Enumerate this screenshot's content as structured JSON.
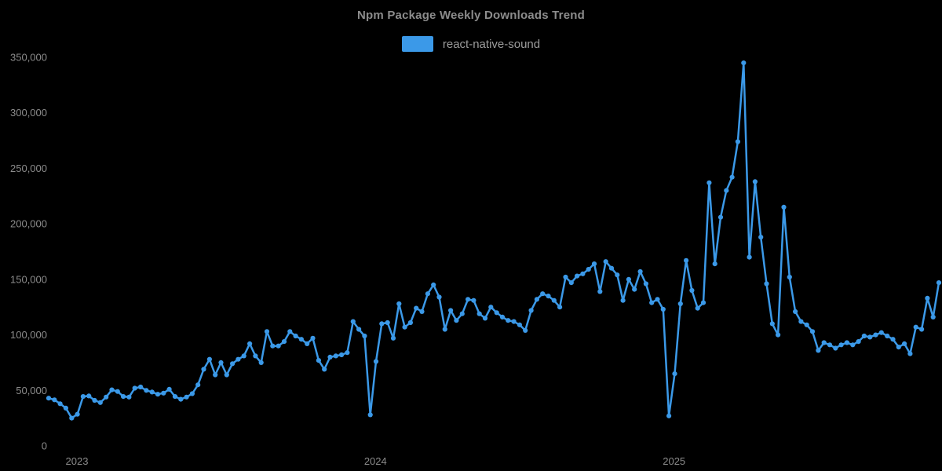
{
  "title": "Npm Package Weekly Downloads Trend",
  "legend": {
    "label": "react-native-sound",
    "swatch_color": "#3b99e8"
  },
  "colors": {
    "background": "#000000",
    "title_text": "#8c8c8c",
    "axis_label_text": "#8b8b8b",
    "legend_text": "#9c9c9c",
    "line": "#3b99e8"
  },
  "chart_data": {
    "type": "line",
    "title": "Npm Package Weekly Downloads Trend",
    "grid": false,
    "legend_position": "top",
    "markers": true,
    "x_axis": {
      "tick_labels": [
        "2023",
        "2024",
        "2025"
      ],
      "tick_indices": [
        4.92,
        56.9,
        108.9
      ]
    },
    "y_axis": {
      "min": 0,
      "max": 350000,
      "tick_step": 50000,
      "tick_labels": [
        "0",
        "50,000",
        "100,000",
        "150,000",
        "200,000",
        "250,000",
        "300,000",
        "350,000"
      ]
    },
    "series": [
      {
        "name": "react-native-sound",
        "color": "#3b99e8",
        "unit": "weekly downloads",
        "values": [
          43000,
          41500,
          38000,
          34000,
          25000,
          28500,
          44500,
          45000,
          41000,
          39000,
          44000,
          50500,
          49000,
          44500,
          44000,
          52000,
          53000,
          50000,
          48500,
          46500,
          47500,
          51000,
          44500,
          42000,
          44000,
          47000,
          55000,
          69000,
          78000,
          64000,
          75000,
          64000,
          74000,
          78000,
          81000,
          92000,
          81000,
          75000,
          103000,
          90000,
          90000,
          94000,
          103000,
          99000,
          96000,
          92000,
          97000,
          77000,
          69000,
          80000,
          81000,
          82000,
          84000,
          112000,
          105000,
          99000,
          28000,
          76000,
          110000,
          111000,
          97000,
          128000,
          107000,
          111000,
          124000,
          121000,
          137000,
          145000,
          134000,
          105000,
          122000,
          113000,
          119000,
          132000,
          131000,
          119000,
          115000,
          125000,
          120000,
          116000,
          113000,
          112000,
          109000,
          104000,
          122000,
          132000,
          137000,
          135000,
          131000,
          125000,
          152000,
          147000,
          153000,
          155000,
          159000,
          164000,
          139000,
          166000,
          160000,
          154000,
          131000,
          150000,
          141000,
          157000,
          146000,
          129000,
          132000,
          123000,
          27000,
          65000,
          128000,
          167000,
          140000,
          124000,
          129000,
          237000,
          164000,
          206000,
          230000,
          242000,
          274000,
          345000,
          170000,
          238000,
          188000,
          146000,
          110000,
          100000,
          215000,
          152000,
          121000,
          112000,
          109000,
          103000,
          86000,
          93000,
          91000,
          88000,
          91000,
          93000,
          91000,
          94000,
          99000,
          98000,
          100000,
          102000,
          99000,
          96000,
          89000,
          92000,
          83000,
          107000,
          105000,
          133000,
          116000,
          147000
        ]
      }
    ]
  }
}
